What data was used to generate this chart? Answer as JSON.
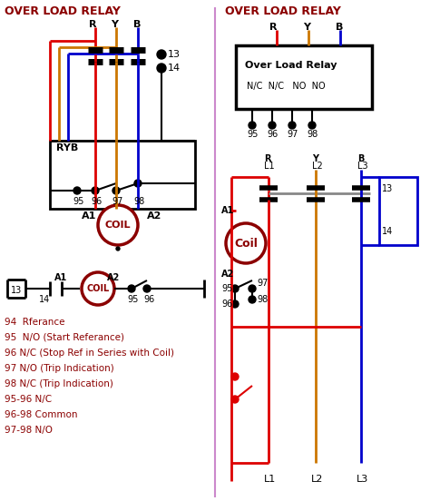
{
  "title_left": "OVER LOAD RELAY",
  "title_right": "OVER LOAD RELAY",
  "bg_color": "#ffffff",
  "darkred": "#8B0000",
  "black": "#000000",
  "red": "#dd0000",
  "orange": "#cc7700",
  "blue": "#0000cc",
  "divider_color": "#cc88cc",
  "legend_lines": [
    "94  Rferance",
    "95  N/O (Start Referance)",
    "96 N/C (Stop Ref in Series with Coil)",
    "97 N/O (Trip Indication)",
    "98 N/C (Trip Indication)",
    "95-96 N/C",
    "96-98 Common",
    "97-98 N/O"
  ]
}
